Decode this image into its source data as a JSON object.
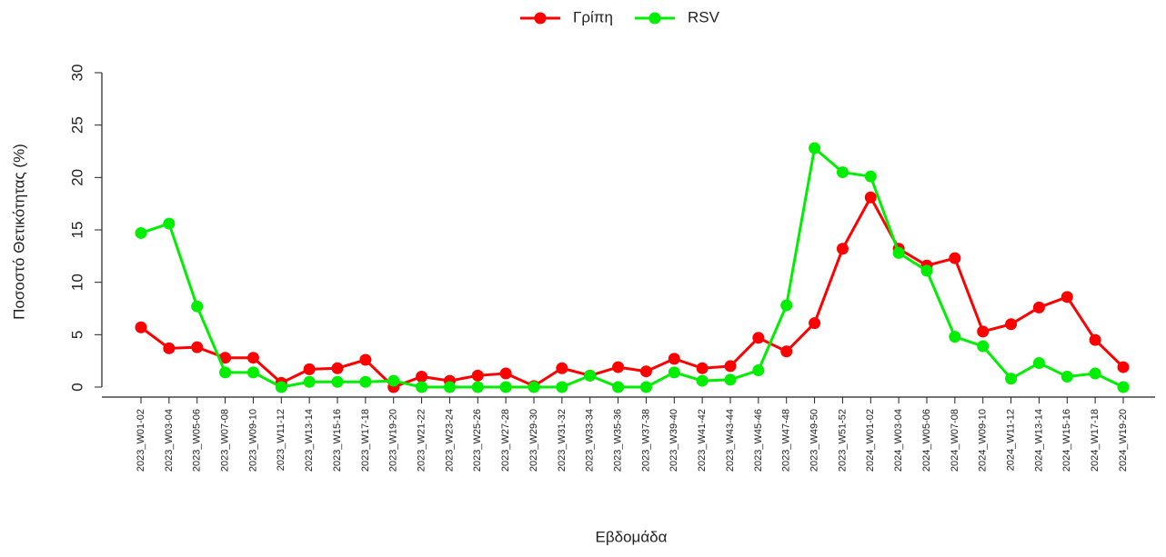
{
  "chart_data": {
    "type": "line",
    "xlabel": "Εβδομάδα",
    "ylabel": "Ποσοστό Θετικότητας (%)",
    "categories": [
      "2023_W01-02",
      "2023_W03-04",
      "2023_W05-06",
      "2023_W07-08",
      "2023_W09-10",
      "2023_W11-12",
      "2023_W13-14",
      "2023_W15-16",
      "2023_W17-18",
      "2023_W19-20",
      "2023_W21-22",
      "2023_W23-24",
      "2023_W25-26",
      "2023_W27-28",
      "2023_W29-30",
      "2023_W31-32",
      "2023_W33-34",
      "2023_W35-36",
      "2023_W37-38",
      "2023_W39-40",
      "2023_W41-42",
      "2023_W43-44",
      "2023_W45-46",
      "2023_W47-48",
      "2023_W49-50",
      "2023_W51-52",
      "2024_W01-02",
      "2024_W03-04",
      "2024_W05-06",
      "2024_W07-08",
      "2024_W09-10",
      "2024_W11-12",
      "2024_W13-14",
      "2024_W15-16",
      "2024_W17-18",
      "2024_W19-20"
    ],
    "series": [
      {
        "name": "Γρίπη",
        "color": "#ff0000",
        "values": [
          5.7,
          3.7,
          3.8,
          2.8,
          2.8,
          0.4,
          1.7,
          1.8,
          2.6,
          0,
          1.0,
          0.6,
          1.1,
          1.3,
          0.1,
          1.8,
          1.1,
          1.9,
          1.5,
          2.7,
          1.8,
          2.0,
          4.7,
          3.4,
          6.1,
          13.2,
          18.1,
          13.2,
          11.6,
          12.3,
          5.3,
          6.0,
          7.6,
          8.6,
          4.5,
          1.9
        ]
      },
      {
        "name": "RSV",
        "color": "#00ee00",
        "values": [
          14.7,
          15.6,
          7.7,
          1.4,
          1.4,
          0,
          0.5,
          0.5,
          0.5,
          0.6,
          0,
          0,
          0,
          0,
          0,
          0,
          1.1,
          0,
          0,
          1.4,
          0.6,
          0.7,
          1.6,
          7.8,
          22.8,
          20.5,
          20.1,
          12.8,
          11.1,
          4.8,
          3.9,
          0.8,
          2.3,
          1.0,
          1.3,
          0
        ]
      }
    ],
    "ylim": [
      0,
      30
    ],
    "yticks": [
      0,
      5,
      10,
      15,
      20,
      25,
      30
    ],
    "legend": "top"
  }
}
